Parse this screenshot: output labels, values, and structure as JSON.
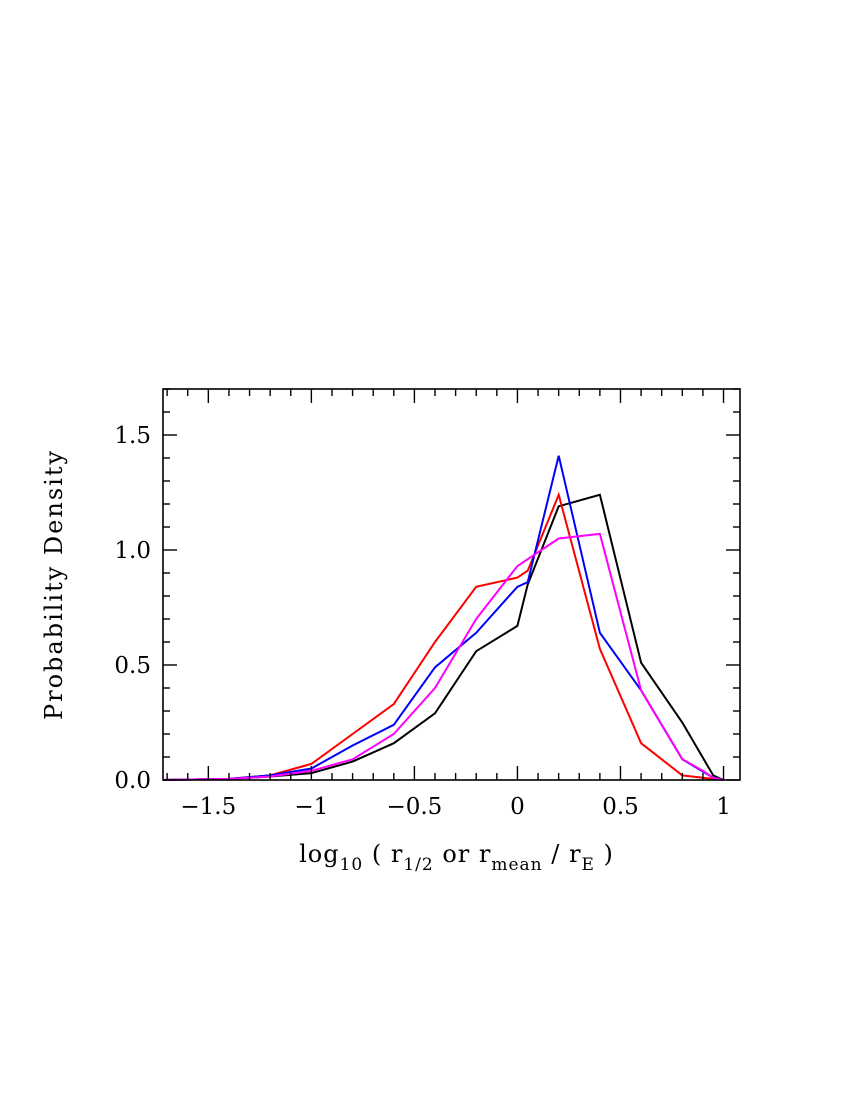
{
  "chart_data": {
    "type": "line",
    "title": "",
    "xlabel": {
      "parts": [
        {
          "text": "log",
          "sub": "10"
        },
        {
          "text": " ( r",
          "sub": "1/2"
        },
        {
          "text": " or r",
          "sub": "mean"
        },
        {
          "text": " / r",
          "sub": "E"
        },
        {
          "text": " )",
          "sub": ""
        }
      ]
    },
    "ylabel": "Probability Density",
    "xlim": [
      -1.72,
      1.08
    ],
    "ylim": [
      0.0,
      1.7
    ],
    "x_ticks": [
      {
        "value": -1.5,
        "label": "−1.5"
      },
      {
        "value": -1.0,
        "label": "−1"
      },
      {
        "value": -0.5,
        "label": "−0.5"
      },
      {
        "value": 0.0,
        "label": "0"
      },
      {
        "value": 0.5,
        "label": "0.5"
      },
      {
        "value": 1.0,
        "label": "1"
      }
    ],
    "y_ticks": [
      {
        "value": 0.0,
        "label": "0.0"
      },
      {
        "value": 0.5,
        "label": "0.5"
      },
      {
        "value": 1.0,
        "label": "1.0"
      },
      {
        "value": 1.5,
        "label": "1.5"
      }
    ],
    "x_minor_step": 0.1,
    "y_minor_step": 0.1,
    "grid": false,
    "series": [
      {
        "name": "black",
        "color": "#000000",
        "x": [
          -1.72,
          -1.4,
          -1.2,
          -1.0,
          -0.8,
          -0.6,
          -0.4,
          -0.2,
          0.0,
          0.05,
          0.2,
          0.4,
          0.6,
          0.8,
          0.95,
          1.0
        ],
        "y": [
          0.0,
          0.005,
          0.015,
          0.03,
          0.08,
          0.16,
          0.29,
          0.56,
          0.67,
          0.85,
          1.19,
          1.24,
          0.51,
          0.25,
          0.02,
          0.0
        ]
      },
      {
        "name": "red",
        "color": "#ff0000",
        "x": [
          -1.72,
          -1.4,
          -1.2,
          -1.0,
          -0.8,
          -0.6,
          -0.4,
          -0.2,
          0.0,
          0.05,
          0.2,
          0.4,
          0.6,
          0.8,
          0.9,
          0.95,
          1.0
        ],
        "y": [
          0.0,
          0.005,
          0.02,
          0.07,
          0.2,
          0.33,
          0.6,
          0.84,
          0.88,
          0.91,
          1.24,
          0.57,
          0.16,
          0.02,
          0.01,
          0.005,
          0.0
        ]
      },
      {
        "name": "blue",
        "color": "#0000ff",
        "x": [
          -1.72,
          -1.4,
          -1.2,
          -1.0,
          -0.8,
          -0.6,
          -0.4,
          -0.2,
          0.0,
          0.05,
          0.2,
          0.4,
          0.6,
          0.8,
          0.95,
          1.0
        ],
        "y": [
          0.0,
          0.005,
          0.02,
          0.05,
          0.15,
          0.24,
          0.49,
          0.64,
          0.84,
          0.86,
          1.41,
          0.64,
          0.39,
          0.09,
          0.01,
          0.0
        ]
      },
      {
        "name": "magenta",
        "color": "#ff00ff",
        "x": [
          -1.72,
          -1.4,
          -1.2,
          -1.0,
          -0.8,
          -0.6,
          -0.4,
          -0.2,
          0.0,
          0.05,
          0.2,
          0.4,
          0.6,
          0.8,
          0.9,
          0.95,
          1.0
        ],
        "y": [
          0.0,
          0.005,
          0.015,
          0.04,
          0.09,
          0.2,
          0.4,
          0.7,
          0.93,
          0.96,
          1.05,
          1.07,
          0.39,
          0.09,
          0.04,
          0.01,
          0.0
        ]
      }
    ]
  }
}
